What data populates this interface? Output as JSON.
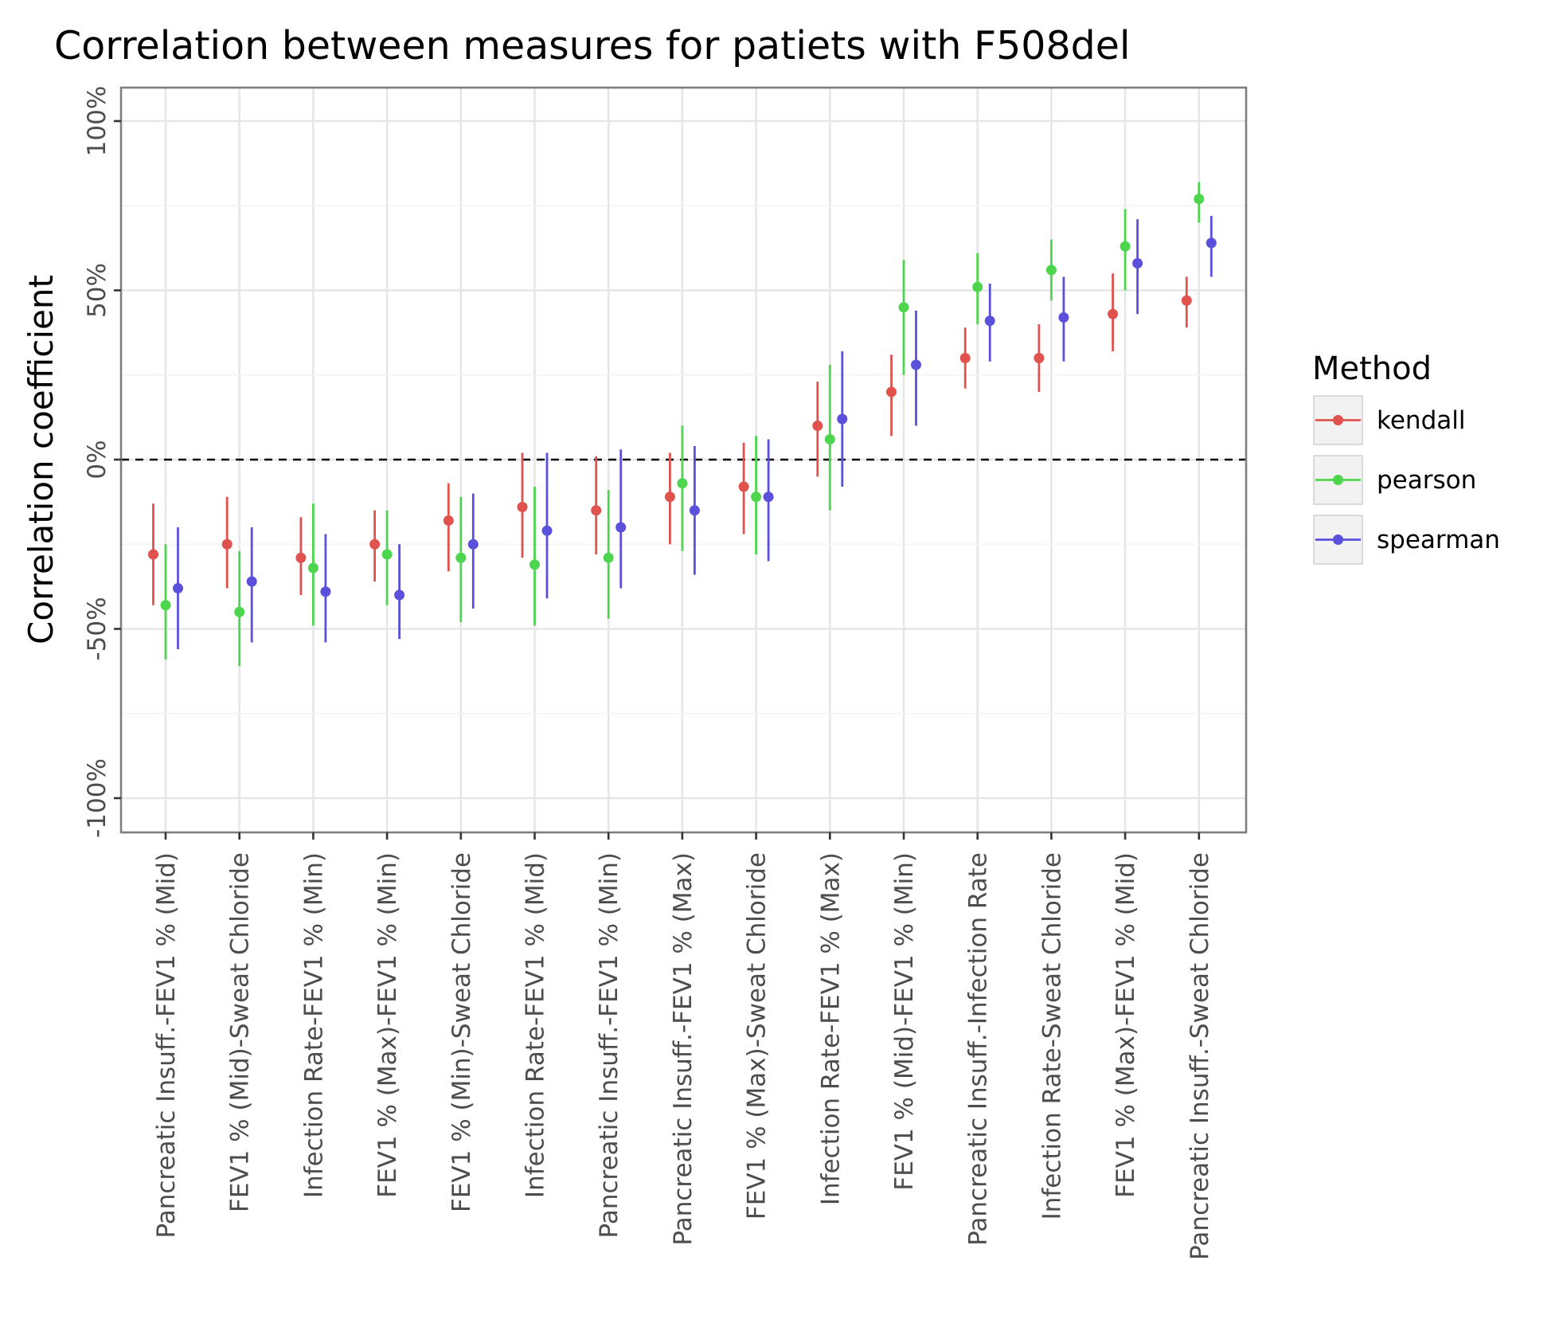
{
  "chart_data": {
    "type": "pointrange",
    "title": "Correlation between measures for patiets with F508del",
    "xlabel": "",
    "ylabel": "Correlation coefficient",
    "ylim": [
      -1.1,
      1.0
    ],
    "yticks": [
      -1,
      -0.5,
      0,
      0.5,
      1
    ],
    "ytick_labels": [
      "-100%",
      "-50%",
      "0%",
      "50%",
      "100%"
    ],
    "reference_line": {
      "y": 0,
      "style": "dashed"
    },
    "grid": true,
    "legend": {
      "title": "Method",
      "position": "right"
    },
    "categories": [
      "Pancreatic Insuff.-FEV1 % (Mid)",
      "FEV1 % (Mid)-Sweat Chloride",
      "Infection Rate-FEV1 % (Min)",
      "FEV1 % (Max)-FEV1 % (Min)",
      "FEV1 % (Min)-Sweat Chloride",
      "Infection Rate-FEV1 % (Mid)",
      "Pancreatic Insuff.-FEV1 % (Min)",
      "Pancreatic Insuff.-FEV1 % (Max)",
      "FEV1 % (Max)-Sweat Chloride",
      "Infection Rate-FEV1 % (Max)",
      "FEV1 % (Mid)-FEV1 % (Min)",
      "Pancreatic Insuff.-Infection Rate",
      "Infection Rate-Sweat Chloride",
      "FEV1 % (Max)-FEV1 % (Mid)",
      "Pancreatic Insuff.-Sweat Chloride"
    ],
    "series": [
      {
        "name": "kendall",
        "color": "#e0524d",
        "values": [
          -0.28,
          -0.25,
          -0.29,
          -0.25,
          -0.18,
          -0.14,
          -0.15,
          -0.11,
          -0.08,
          0.1,
          0.2,
          0.3,
          0.3,
          0.43,
          0.47
        ],
        "lower": [
          -0.43,
          -0.38,
          -0.4,
          -0.36,
          -0.33,
          -0.29,
          -0.28,
          -0.25,
          -0.22,
          -0.05,
          0.07,
          0.21,
          0.2,
          0.32,
          0.39
        ],
        "upper": [
          -0.13,
          -0.11,
          -0.17,
          -0.15,
          -0.07,
          0.02,
          0.01,
          0.02,
          0.05,
          0.23,
          0.31,
          0.39,
          0.4,
          0.55,
          0.54
        ]
      },
      {
        "name": "pearson",
        "color": "#4dd64d",
        "values": [
          -0.43,
          -0.45,
          -0.32,
          -0.28,
          -0.29,
          -0.31,
          -0.29,
          -0.07,
          -0.11,
          0.06,
          0.45,
          0.51,
          0.56,
          0.63,
          0.77
        ],
        "lower": [
          -0.59,
          -0.61,
          -0.49,
          -0.43,
          -0.48,
          -0.49,
          -0.47,
          -0.27,
          -0.28,
          -0.15,
          0.25,
          0.4,
          0.47,
          0.5,
          0.7
        ],
        "upper": [
          -0.25,
          -0.27,
          -0.13,
          -0.15,
          -0.11,
          -0.08,
          -0.09,
          0.1,
          0.07,
          0.28,
          0.59,
          0.61,
          0.65,
          0.74,
          0.82
        ]
      },
      {
        "name": "spearman",
        "color": "#5b50dc",
        "values": [
          -0.38,
          -0.36,
          -0.39,
          -0.4,
          -0.25,
          -0.21,
          -0.2,
          -0.15,
          -0.11,
          0.12,
          0.28,
          0.41,
          0.42,
          0.58,
          0.64
        ],
        "lower": [
          -0.56,
          -0.54,
          -0.54,
          -0.53,
          -0.44,
          -0.41,
          -0.38,
          -0.34,
          -0.3,
          -0.08,
          0.1,
          0.29,
          0.29,
          0.43,
          0.54
        ],
        "upper": [
          -0.2,
          -0.2,
          -0.22,
          -0.25,
          -0.1,
          0.02,
          0.03,
          0.04,
          0.06,
          0.32,
          0.44,
          0.52,
          0.54,
          0.71,
          0.72
        ]
      }
    ]
  }
}
